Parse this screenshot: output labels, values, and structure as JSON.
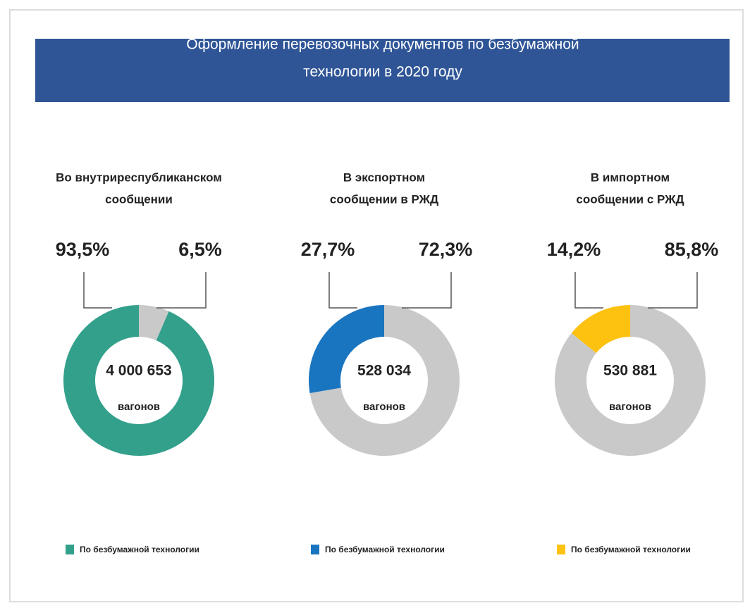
{
  "header": {
    "title": [
      "Оформление перевозочных документов по безбумажной",
      "технологии в 2020 году"
    ]
  },
  "chart_data": [
    {
      "type": "donut",
      "title": [
        "Во внутриреспубликанском",
        "сообщении"
      ],
      "categories": [
        "По безбумажной технологии",
        null
      ],
      "values": [
        93.5,
        6.5
      ],
      "value_labels": [
        "93,5%",
        "6,5%"
      ],
      "colors": [
        "#33a08c",
        "#c9c9c9"
      ],
      "center": [
        "4 000 653",
        "вагонов"
      ]
    },
    {
      "type": "donut",
      "title": [
        "В экспортном",
        "сообщении в РЖД"
      ],
      "categories": [
        "По безбумажной технологии",
        null
      ],
      "values": [
        27.7,
        72.3
      ],
      "value_labels": [
        "27,7%",
        "72,3%"
      ],
      "colors": [
        "#1a75c0",
        "#c9c9c9"
      ],
      "center": [
        "528 034",
        "вагонов"
      ]
    },
    {
      "type": "donut",
      "title": [
        "В импортном",
        "сообщении с РЖД"
      ],
      "categories": [
        "По безбумажной технологии",
        null
      ],
      "values": [
        14.2,
        85.8
      ],
      "value_labels": [
        "14,2%",
        "85,8%"
      ],
      "colors": [
        "#fdc20f",
        "#c9c9c9"
      ],
      "center": [
        "530 881",
        "вагонов"
      ]
    }
  ]
}
